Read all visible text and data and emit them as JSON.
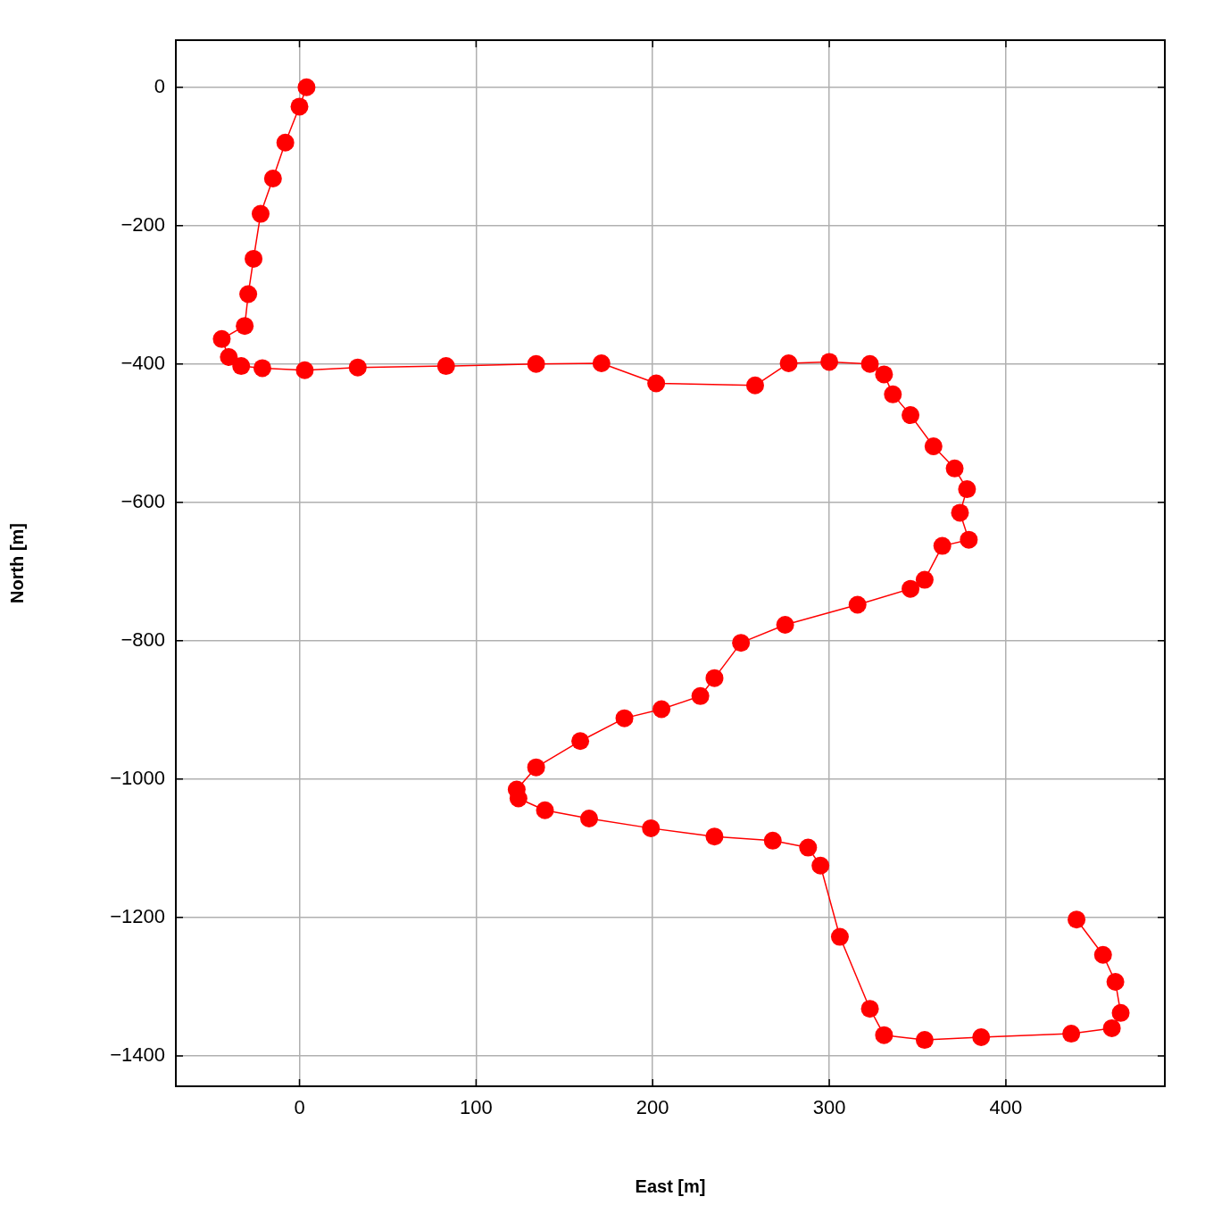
{
  "chart_data": {
    "type": "line",
    "xlabel": "East [m]",
    "ylabel": "North [m]",
    "x": [
      4,
      0,
      -8,
      -15,
      -22,
      -26,
      -29,
      -31,
      -44,
      -40,
      -33,
      -21,
      3,
      33,
      83,
      134,
      171,
      202,
      258,
      277,
      300,
      323,
      331,
      336,
      346,
      359,
      371,
      378,
      374,
      379,
      364,
      354,
      346,
      316,
      275,
      250,
      235,
      227,
      205,
      184,
      159,
      134,
      123,
      124,
      139,
      164,
      199,
      235,
      268,
      288,
      295,
      306,
      323,
      331,
      354,
      386,
      437,
      460,
      465,
      462,
      455,
      440
    ],
    "series": [
      {
        "color": "#ff0000",
        "values": [
          0,
          -28,
          -80,
          -132,
          -183,
          -248,
          -299,
          -345,
          -364,
          -390,
          -403,
          -406,
          -409,
          -405,
          -403,
          -400,
          -399,
          -428,
          -431,
          -399,
          -397,
          -400,
          -415,
          -444,
          -474,
          -519,
          -551,
          -581,
          -615,
          -654,
          -663,
          -712,
          -725,
          -748,
          -777,
          -803,
          -854,
          -880,
          -899,
          -912,
          -945,
          -983,
          -1015,
          -1028,
          -1045,
          -1057,
          -1071,
          -1083,
          -1089,
          -1099,
          -1125,
          -1228,
          -1332,
          -1370,
          -1377,
          -1373,
          -1368,
          -1360,
          -1338,
          -1293,
          -1254,
          -1203
        ]
      }
    ],
    "xlim": [
      -70,
      490
    ],
    "ylim": [
      -1444,
      68
    ],
    "xticks": [
      0,
      100,
      200,
      300,
      400
    ],
    "yticks": [
      0,
      -200,
      -400,
      -600,
      -800,
      -1000,
      -1200,
      -1400
    ],
    "grid": true,
    "marker": "circle",
    "line_style": "solid"
  }
}
